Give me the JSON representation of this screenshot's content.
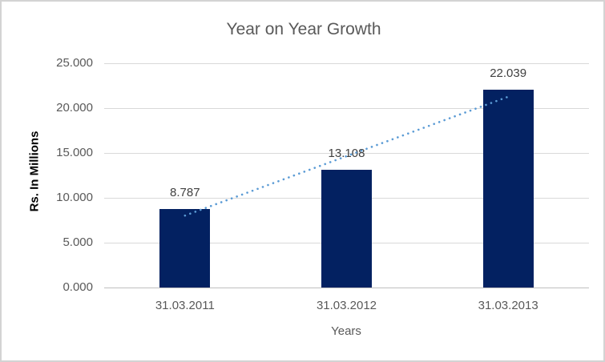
{
  "chart_data": {
    "type": "bar",
    "title": "Year on Year Growth",
    "categories": [
      "31.03.2011",
      "31.03.2012",
      "31.03.2013"
    ],
    "values": [
      8.787,
      13.108,
      22.039
    ],
    "data_labels": [
      "8.787",
      "13.108",
      "22.039"
    ],
    "xlabel": "Years",
    "ylabel": "Rs. In Millions",
    "ylim": [
      0,
      25
    ],
    "yticks": [
      {
        "value": 0,
        "label": "0.000"
      },
      {
        "value": 5,
        "label": "5.000"
      },
      {
        "value": 10,
        "label": "10.000"
      },
      {
        "value": 15,
        "label": "15.000"
      },
      {
        "value": 20,
        "label": "20.000"
      },
      {
        "value": 25,
        "label": "25.000"
      }
    ],
    "grid": true,
    "legend": "none",
    "trendline": {
      "type": "linear",
      "style": "dotted-round"
    },
    "colors": {
      "bar": "#032161",
      "trendline": "#5b9bd5",
      "title_text": "#595959",
      "axis_text": "#595959",
      "data_label_text": "#404040",
      "ylabel_text": "#000000",
      "gridline": "#d9d9d9",
      "axis_line": "#bfbfbf",
      "border": "#d3d3d3"
    }
  }
}
